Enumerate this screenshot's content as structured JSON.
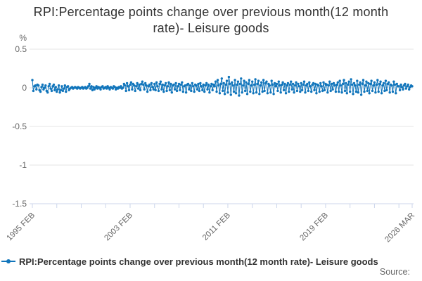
{
  "title": "RPI:Percentage points change over previous month(12 month rate)- Leisure goods",
  "legend": {
    "label": "RPI:Percentage points change over previous month(12 month rate)- Leisure goods"
  },
  "source": {
    "label": "Source:"
  },
  "colors": {
    "series_blue": "#1175bb",
    "gridline": "#e6e6e6",
    "axis_line": "#ccd6eb",
    "tick_label": "#666666",
    "title_text": "#333333"
  },
  "chart_data": {
    "type": "line",
    "title": "RPI:Percentage points change over previous month(12 month rate)- Leisure goods",
    "unit_label": "%",
    "ylabel": "%",
    "xlabel": "",
    "ylim": [
      -1.5,
      0.5
    ],
    "y_ticks": [
      0.5,
      0,
      -0.5,
      -1,
      -1.5
    ],
    "grid": "horizontal",
    "legend_position": "bottom-left",
    "x_start": "1995 FEB",
    "x_end": "2026 MAR",
    "x_tick_every_months": 24,
    "x_label_indices": [
      0,
      96,
      192,
      288,
      373
    ],
    "x_tick_labels": [
      "1995 FEB",
      "2003 FEB",
      "2011 FEB",
      "2019 FEB",
      "2026 MAR"
    ],
    "series": [
      {
        "name": "RPI:Percentage points change over previous month(12 month rate)- Leisure goods",
        "color": "#1175bb",
        "marker": "circle",
        "values": [
          0.1,
          -0.04,
          0.02,
          0.03,
          -0.02,
          0.04,
          0.03,
          -0.03,
          -0.05,
          0.01,
          0.04,
          -0.02,
          0.0,
          0.03,
          -0.04,
          -0.06,
          0.02,
          0.05,
          -0.01,
          -0.04,
          0.02,
          0.04,
          -0.03,
          0.01,
          -0.05,
          -0.02,
          0.03,
          -0.06,
          -0.03,
          0.02,
          -0.04,
          -0.01,
          0.03,
          -0.05,
          0.01,
          0.02,
          -0.03,
          -0.01,
          0.0,
          0.01,
          -0.01,
          0.0,
          0.01,
          0.0,
          -0.01,
          0.01,
          0.0,
          -0.01,
          0.0,
          0.01,
          -0.01,
          0.0,
          0.01,
          -0.01,
          0.0,
          0.02,
          0.05,
          -0.01,
          0.02,
          -0.03,
          0.01,
          -0.02,
          0.0,
          0.02,
          -0.01,
          0.01,
          0.0,
          -0.02,
          0.01,
          0.02,
          -0.01,
          0.0,
          0.01,
          -0.01,
          0.02,
          0.0,
          -0.02,
          0.01,
          0.0,
          -0.01,
          0.02,
          0.01,
          -0.02,
          0.0,
          -0.01,
          0.01,
          0.0,
          0.02,
          -0.01,
          0.0,
          0.05,
          0.03,
          -0.04,
          0.06,
          0.02,
          -0.03,
          0.04,
          0.07,
          -0.02,
          0.05,
          0.03,
          -0.04,
          0.02,
          0.06,
          -0.01,
          0.04,
          -0.03,
          0.05,
          0.08,
          0.04,
          -0.02,
          0.06,
          0.03,
          -0.05,
          0.02,
          0.04,
          -0.03,
          0.06,
          0.01,
          -0.02,
          0.05,
          -0.03,
          0.07,
          0.02,
          -0.04,
          0.05,
          0.08,
          -0.02,
          0.04,
          -0.05,
          0.03,
          0.06,
          -0.04,
          0.02,
          0.07,
          -0.03,
          0.05,
          -0.06,
          0.03,
          0.04,
          -0.02,
          0.06,
          -0.04,
          0.02,
          0.05,
          -0.03,
          0.04,
          0.07,
          -0.05,
          0.02,
          0.03,
          -0.06,
          0.04,
          0.05,
          -0.02,
          0.03,
          -0.04,
          0.06,
          0.02,
          -0.05,
          0.04,
          0.03,
          -0.02,
          0.05,
          -0.04,
          0.06,
          0.02,
          -0.03,
          0.04,
          -0.05,
          0.03,
          0.06,
          -0.02,
          0.04,
          -0.06,
          0.02,
          0.05,
          -0.03,
          0.04,
          0.02,
          0.08,
          -0.05,
          0.1,
          0.03,
          -0.07,
          0.05,
          0.12,
          -0.04,
          0.06,
          -0.08,
          0.04,
          0.09,
          -0.06,
          0.14,
          0.05,
          -0.09,
          0.07,
          0.03,
          -0.05,
          0.1,
          -0.07,
          0.04,
          0.08,
          -0.1,
          0.05,
          0.12,
          -0.06,
          0.03,
          0.09,
          -0.04,
          0.07,
          -0.08,
          0.05,
          0.1,
          -0.05,
          0.03,
          0.08,
          -0.07,
          0.04,
          0.11,
          -0.06,
          0.05,
          0.09,
          -0.08,
          0.03,
          0.07,
          -0.05,
          0.1,
          -0.04,
          0.06,
          0.08,
          -0.07,
          0.05,
          0.03,
          -0.06,
          0.09,
          0.04,
          -0.08,
          0.06,
          0.02,
          0.05,
          -0.04,
          0.08,
          0.03,
          -0.06,
          0.04,
          0.07,
          -0.03,
          0.05,
          -0.07,
          0.03,
          0.06,
          -0.05,
          0.04,
          0.08,
          -0.02,
          0.05,
          -0.06,
          0.03,
          0.07,
          -0.04,
          0.05,
          0.02,
          -0.05,
          0.06,
          -0.03,
          0.04,
          0.08,
          -0.06,
          0.03,
          0.05,
          -0.04,
          0.07,
          0.02,
          -0.05,
          0.04,
          0.06,
          -0.03,
          0.05,
          -0.07,
          0.04,
          0.03,
          -0.05,
          0.06,
          0.02,
          -0.04,
          0.07,
          -0.03,
          0.05,
          0.04,
          -0.06,
          0.03,
          0.08,
          -0.04,
          0.05,
          -0.02,
          0.06,
          0.03,
          -0.05,
          0.04,
          0.07,
          -0.05,
          0.09,
          0.03,
          -0.06,
          0.05,
          0.1,
          -0.04,
          0.06,
          -0.07,
          0.04,
          0.08,
          -0.05,
          0.11,
          0.04,
          -0.08,
          0.06,
          0.03,
          -0.05,
          0.09,
          -0.06,
          0.04,
          0.07,
          -0.09,
          0.05,
          0.1,
          -0.05,
          0.03,
          0.08,
          -0.04,
          0.06,
          -0.07,
          0.05,
          0.09,
          -0.04,
          0.03,
          0.07,
          -0.06,
          0.04,
          0.1,
          -0.05,
          0.05,
          0.08,
          -0.07,
          0.03,
          0.06,
          -0.04,
          0.09,
          -0.03,
          0.05,
          0.07,
          -0.06,
          0.04,
          0.03,
          -0.05,
          0.08,
          0.04,
          -0.07,
          0.05,
          0.02,
          0.02,
          -0.03,
          0.04,
          0.01,
          -0.02,
          0.03,
          0.05,
          -0.01,
          0.02,
          0.04,
          -0.02,
          0.01,
          0.03,
          0.02
        ]
      }
    ]
  }
}
